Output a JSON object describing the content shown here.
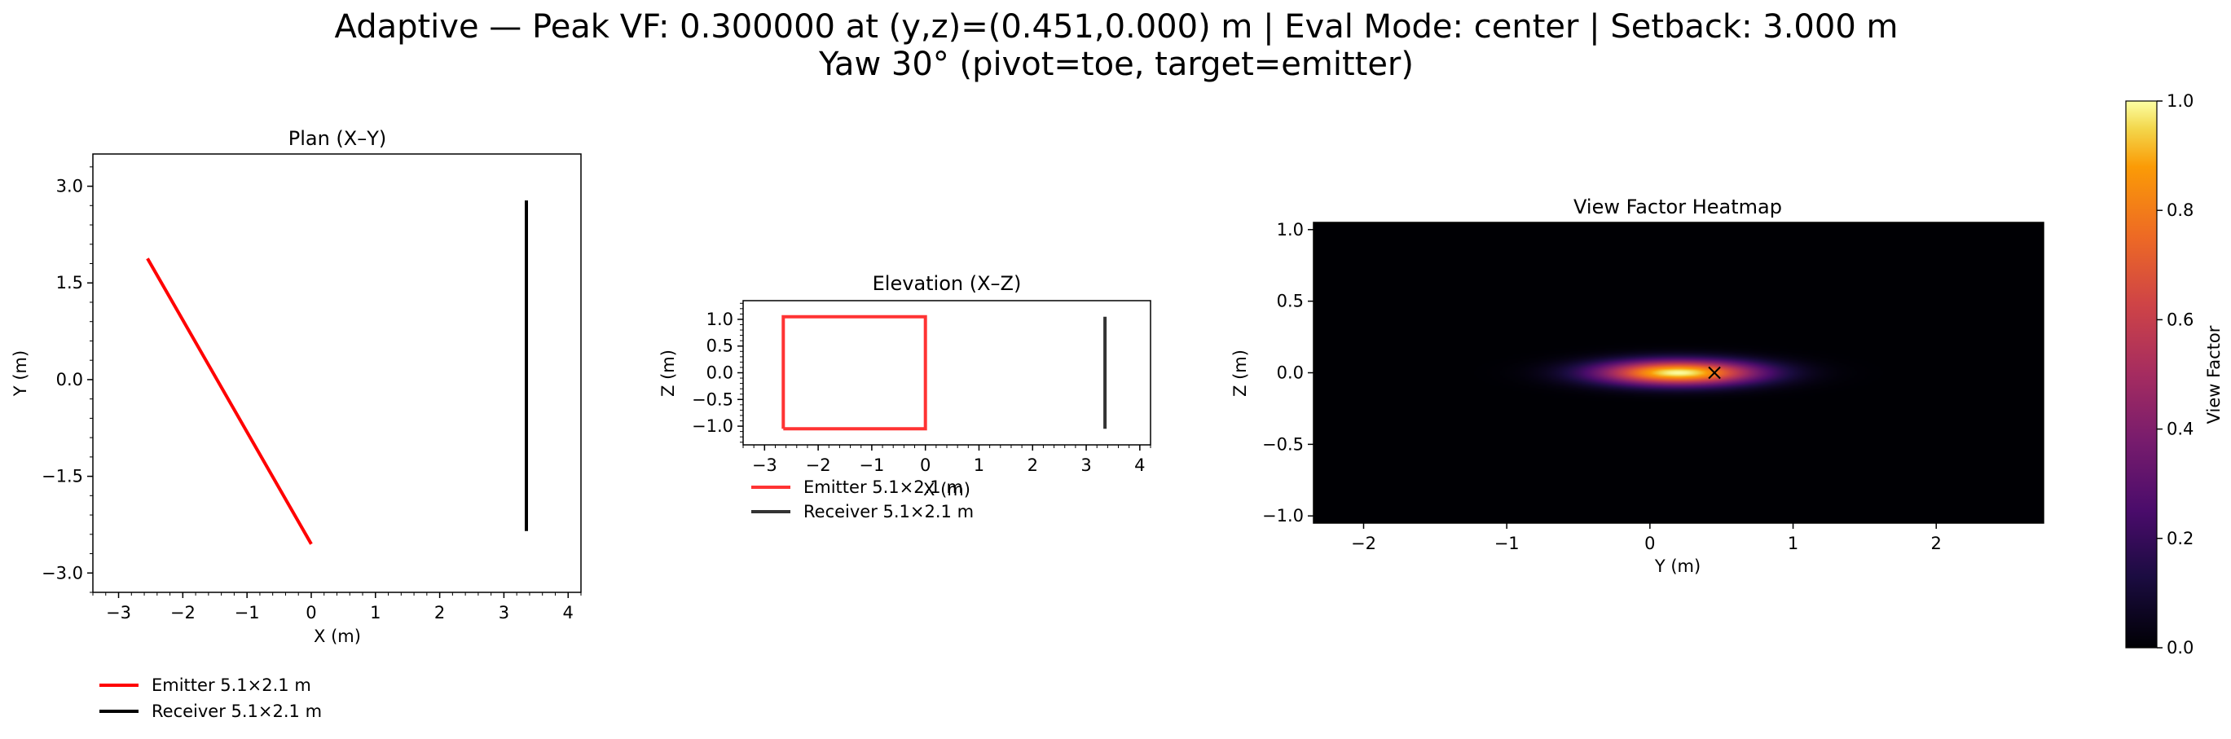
{
  "figure": {
    "title_line1": "Adaptive — Peak VF: 0.300000 at (y,z)=(0.451,0.000) m | Eval Mode: center | Setback: 3.000 m",
    "title_line2": "Yaw 30° (pivot=toe, target=emitter)"
  },
  "colors": {
    "emitter": "#ff0000",
    "receiver": "#000000",
    "colormap": "inferno"
  },
  "chart_data": [
    {
      "type": "line",
      "panel": "plan",
      "title": "Plan (X–Y)",
      "xlabel": "X (m)",
      "ylabel": "Y (m)",
      "xlim": [
        -3.4,
        4.2
      ],
      "ylim": [
        -3.3,
        3.5
      ],
      "xticks": [
        -3,
        -2,
        -1,
        0,
        1,
        2,
        3,
        4
      ],
      "xtick_labels": [
        "−3",
        "−2",
        "−1",
        "0",
        "1",
        "2",
        "3",
        "4"
      ],
      "yticks": [
        -3.0,
        -1.5,
        0.0,
        1.5,
        3.0
      ],
      "ytick_labels": [
        "−3.0",
        "−1.5",
        "0.0",
        "1.5",
        "3.0"
      ],
      "legend_position": "below",
      "series": [
        {
          "name": "Emitter 5.1×2.1 m",
          "color": "#ff0000",
          "points": [
            [
              -2.55,
              1.88
            ],
            [
              0.0,
              -2.55
            ]
          ]
        },
        {
          "name": "Receiver 5.1×2.1 m",
          "color": "#000000",
          "points": [
            [
              3.35,
              2.78
            ],
            [
              3.35,
              -2.35
            ]
          ]
        }
      ]
    },
    {
      "type": "line",
      "panel": "elevation",
      "title": "Elevation (X–Z)",
      "xlabel": "X (m)",
      "ylabel": "Z (m)",
      "xlim": [
        -3.4,
        4.2
      ],
      "ylim": [
        -1.35,
        1.35
      ],
      "xticks": [
        -3,
        -2,
        -1,
        0,
        1,
        2,
        3,
        4
      ],
      "xtick_labels": [
        "−3",
        "−2",
        "−1",
        "0",
        "1",
        "2",
        "3",
        "4"
      ],
      "yticks": [
        -1.0,
        -0.5,
        0.0,
        0.5,
        1.0
      ],
      "ytick_labels": [
        "−1.0",
        "−0.5",
        "0.0",
        "0.5",
        "1.0"
      ],
      "legend_position": "below",
      "series": [
        {
          "name": "Emitter 5.1×2.1 m",
          "color": "#ff0000",
          "points": [
            [
              -2.65,
              -1.05
            ],
            [
              -2.65,
              1.05
            ],
            [
              0.0,
              1.05
            ],
            [
              0.0,
              -1.05
            ],
            [
              -2.65,
              -1.05
            ]
          ]
        },
        {
          "name": "Receiver 5.1×2.1 m",
          "color": "#000000",
          "points": [
            [
              3.35,
              1.05
            ],
            [
              3.35,
              -1.05
            ]
          ]
        }
      ]
    },
    {
      "type": "heatmap",
      "panel": "heatmap",
      "title": "View Factor Heatmap",
      "xlabel": "Y (m)",
      "ylabel": "Z (m)",
      "xlim": [
        -2.35,
        2.75
      ],
      "ylim": [
        -1.05,
        1.05
      ],
      "xticks": [
        -2,
        -1,
        0,
        1,
        2
      ],
      "xtick_labels": [
        "−2",
        "−1",
        "0",
        "1",
        "2"
      ],
      "yticks": [
        -1.0,
        -0.5,
        0.0,
        0.5,
        1.0
      ],
      "ytick_labels": [
        "−1.0",
        "−0.5",
        "0.0",
        "0.5",
        "1.0"
      ],
      "peak": {
        "y": 0.451,
        "z": 0.0,
        "value": 0.3,
        "marker": "x"
      },
      "field_center": {
        "y": 0.2,
        "z": 0.0
      },
      "field_spread": {
        "y": 0.55,
        "z": 0.085
      },
      "colorbar": {
        "label": "View Factor",
        "range": [
          0.0,
          1.0
        ],
        "ticks": [
          0.0,
          0.2,
          0.4,
          0.6,
          0.8,
          1.0
        ],
        "tick_labels": [
          "0.0",
          "0.2",
          "0.4",
          "0.6",
          "0.8",
          "1.0"
        ]
      }
    }
  ]
}
